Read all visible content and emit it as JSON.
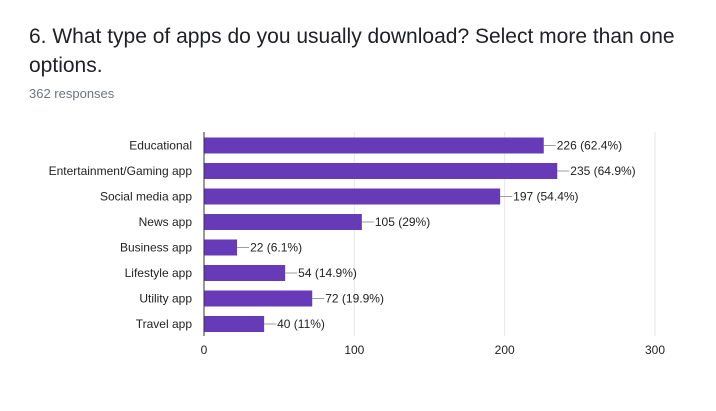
{
  "question": {
    "title": "6. What type of apps do you usually download? Select more than one options.",
    "responses": "362 responses"
  },
  "colors": {
    "bar": "#673ab7",
    "grid": "#e6e6e6",
    "axis": "#333333"
  },
  "chart_data": {
    "type": "bar",
    "orientation": "horizontal",
    "categories": [
      "Educational",
      "Entertainment/Gaming app",
      "Social media app",
      "News app",
      "Business app",
      "Lifestyle app",
      "Utility app",
      "Travel app"
    ],
    "values": [
      226,
      235,
      197,
      105,
      22,
      54,
      72,
      40
    ],
    "data_labels": [
      "226 (62.4%)",
      "235 (64.9%)",
      "197 (54.4%)",
      "105 (29%)",
      "22 (6.1%)",
      "54 (14.9%)",
      "72 (19.9%)",
      "40 (11%)"
    ],
    "xlim": [
      0,
      300
    ],
    "xticks": [
      0,
      100,
      200,
      300
    ],
    "xtick_labels": [
      "0",
      "100",
      "200",
      "300"
    ],
    "grid": true,
    "legend": "none"
  }
}
